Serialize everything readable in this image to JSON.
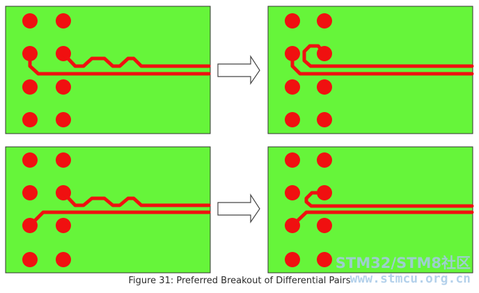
{
  "caption": "Figure 31: Preferred Breakout of Differential Pairs",
  "watermark": {
    "brand": "STM32/STM8社区",
    "site": "www.stmcu.org.cn"
  },
  "colors": {
    "board_fill": "#66f53a",
    "board_border": "#333333",
    "pad": "#f01010",
    "trace": "#f01010",
    "arrow_stroke": "#444444",
    "arrow_fill": "#ffffff"
  },
  "panels": [
    {
      "name": "before-top",
      "breakout": "before",
      "pair": "top"
    },
    {
      "name": "after-top",
      "breakout": "after",
      "pair": "top"
    },
    {
      "name": "before-bottom",
      "breakout": "before",
      "pair": "bottom"
    },
    {
      "name": "after-bottom",
      "breakout": "after",
      "pair": "bottom"
    }
  ]
}
